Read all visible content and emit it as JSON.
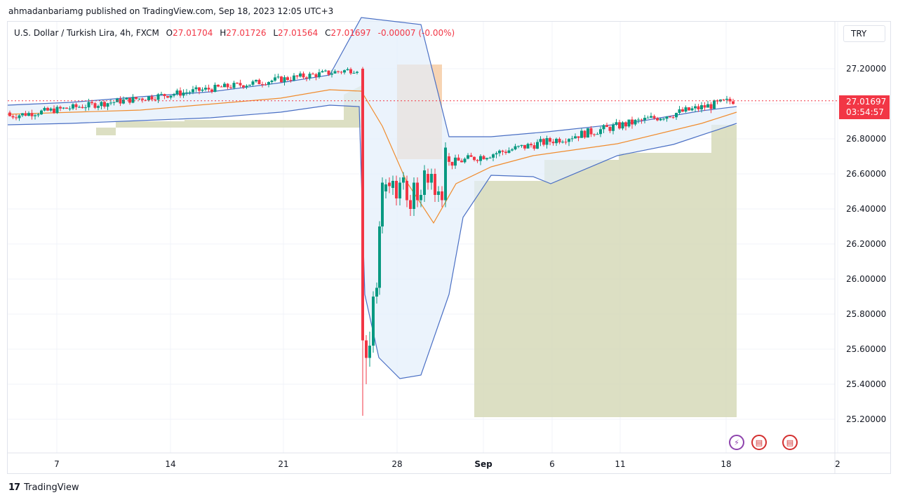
{
  "publish_line": "ahmadanbariamg published on TradingView.com, Sep 18, 2023 12:05 UTC+3",
  "legend": {
    "symbol": "U.S. Dollar / Turkish Lira, 4h, FXCM",
    "open_label": "O",
    "open": "27.01704",
    "high_label": "H",
    "high": "27.01726",
    "low_label": "L",
    "low": "27.01564",
    "close_label": "C",
    "close": "27.01697",
    "change": "-0.00007 (-0.00%)"
  },
  "currency_button": "TRY",
  "price_tag": {
    "price": "27.01697",
    "countdown": "03:54:57"
  },
  "footer_brand": "TradingView",
  "colors": {
    "up": "#089981",
    "down": "#f23645",
    "band": "#4a6fc4",
    "basis": "#f08c2e",
    "cloud": "#d6d9b8",
    "orange_zone": "#f5c9a0",
    "band_fill": "#e3eefb"
  },
  "chart_data": {
    "type": "candlestick",
    "y_axis_labels": [
      "27.20000",
      "27.00000",
      "26.80000",
      "26.60000",
      "26.40000",
      "26.20000",
      "26.00000",
      "25.80000",
      "25.60000",
      "25.40000",
      "25.20000"
    ],
    "ylim": [
      25.0,
      27.37
    ],
    "x_axis_labels": [
      "7",
      "14",
      "21",
      "28",
      "Sep",
      "6",
      "11",
      "18",
      "2"
    ],
    "last_price": 27.01697,
    "series": [
      {
        "name": "candles",
        "ohlc_summary": [
          {
            "phase": "Aug 3 - Aug 25 uptrend",
            "from": 26.93,
            "to": 27.2
          },
          {
            "phase": "Aug 25 crash low",
            "low": 25.22
          },
          {
            "phase": "Aug 26 - Aug 30 recovery",
            "to": 26.6
          },
          {
            "phase": "Aug 31 - Sep 18 uptrend",
            "from": 26.6,
            "to": 27.02
          }
        ]
      }
    ],
    "indicators": [
      "Bollinger Bands",
      "Ichimoku-style cloud zones"
    ],
    "grid": true
  }
}
